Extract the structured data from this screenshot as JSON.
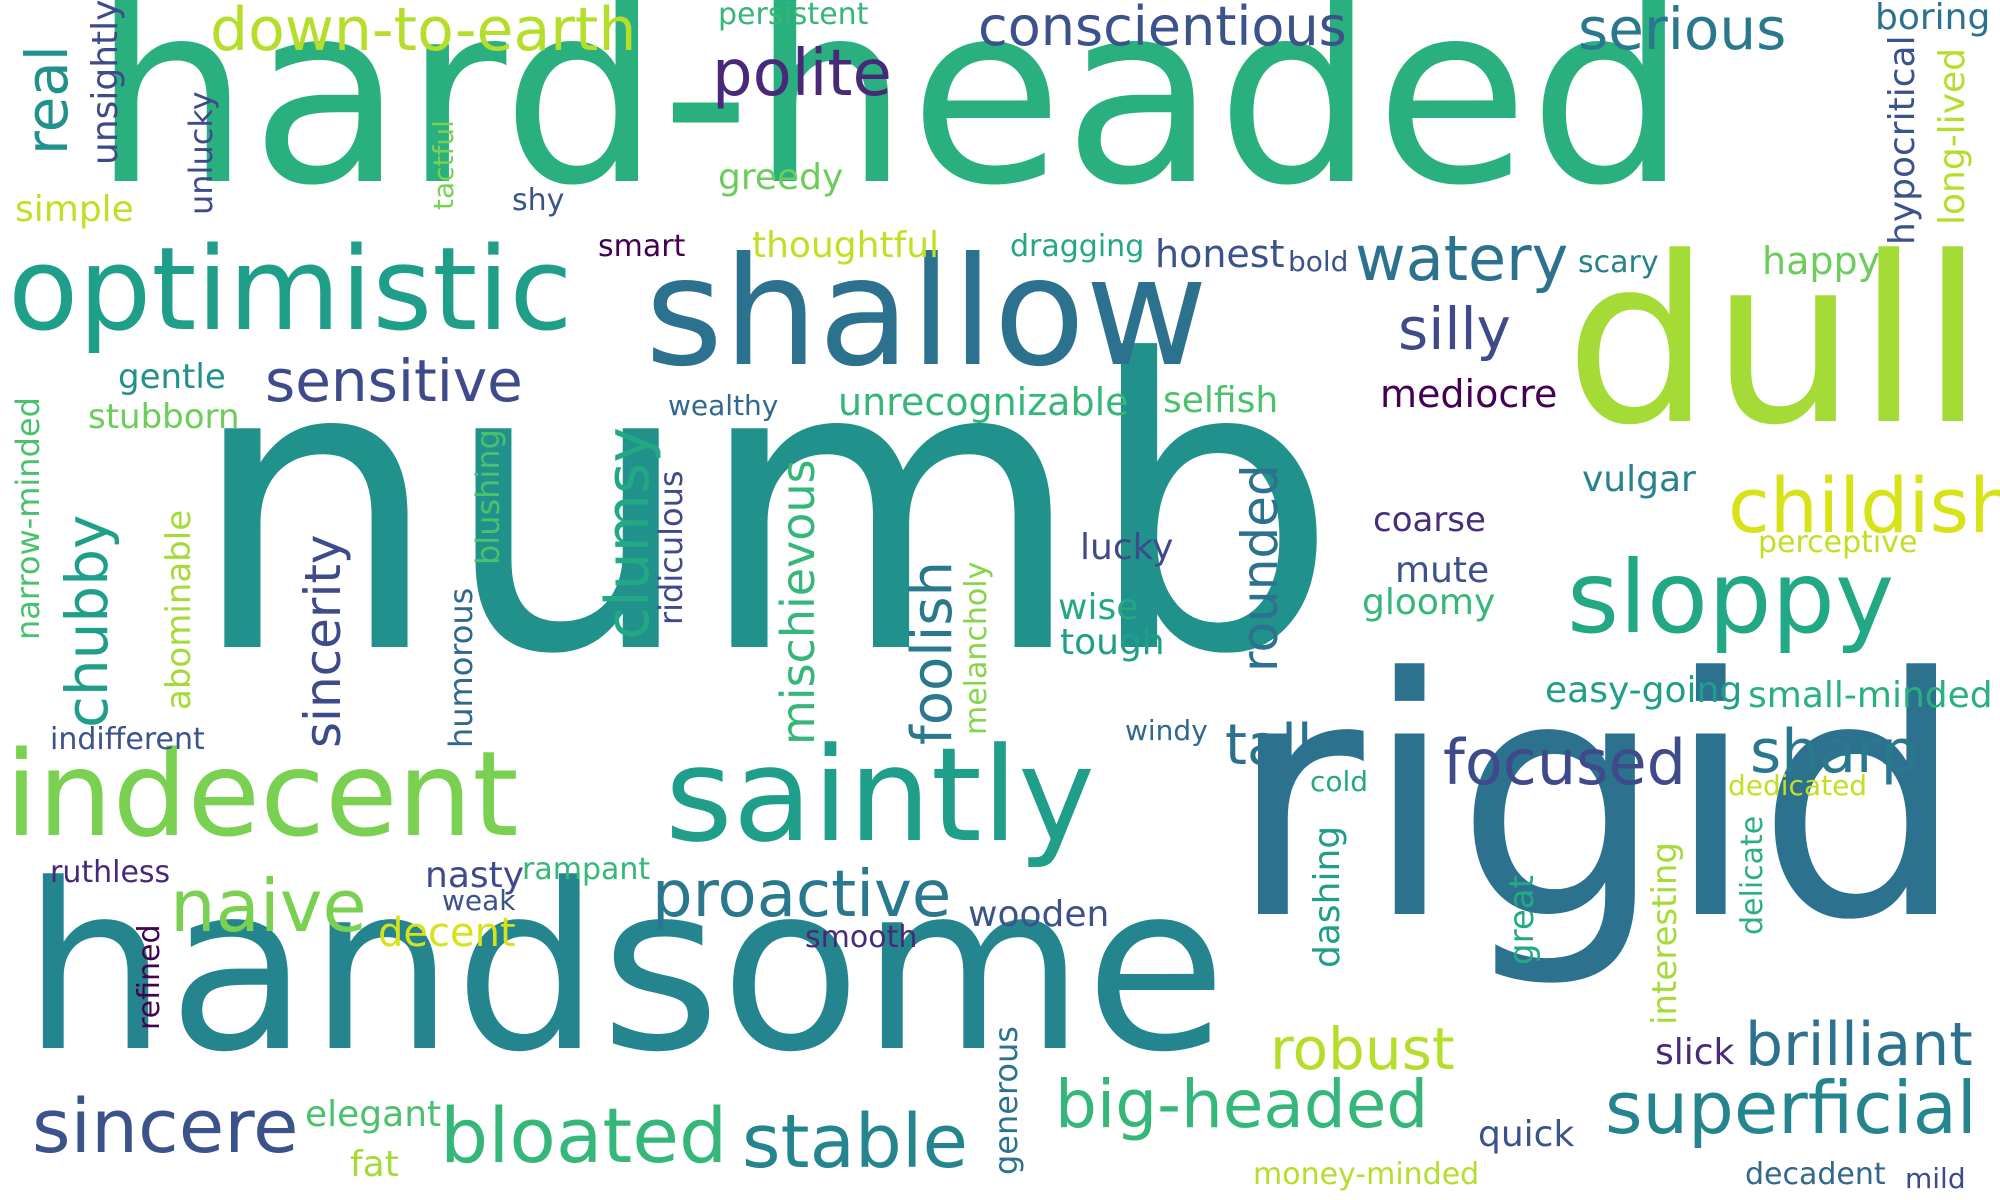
{
  "words": [
    {
      "text": "hard-headed",
      "color": "#2ab07f"
    },
    {
      "text": "numb",
      "color": "#21918c"
    },
    {
      "text": "rigid",
      "color": "#2c728e"
    },
    {
      "text": "handsome",
      "color": "#25858e"
    },
    {
      "text": "dull",
      "color": "#a5db36"
    },
    {
      "text": "shallow",
      "color": "#2c728e"
    },
    {
      "text": "optimistic",
      "color": "#1f9e89"
    },
    {
      "text": "indecent",
      "color": "#7ad151"
    },
    {
      "text": "saintly",
      "color": "#1f9e89"
    },
    {
      "text": "sloppy",
      "color": "#22a884"
    },
    {
      "text": "childish",
      "color": "#d8e219"
    },
    {
      "text": "focused",
      "color": "#3e4a89"
    },
    {
      "text": "sharp",
      "color": "#2a788e"
    },
    {
      "text": "conscientious",
      "color": "#3b528b"
    },
    {
      "text": "down-to-earth",
      "color": "#b5de2b"
    },
    {
      "text": "serious",
      "color": "#2a788e"
    },
    {
      "text": "polite",
      "color": "#482878"
    },
    {
      "text": "sensitive",
      "color": "#3e4a89"
    },
    {
      "text": "naive",
      "color": "#7ad151"
    },
    {
      "text": "proactive",
      "color": "#2a788e"
    },
    {
      "text": "big-headed",
      "color": "#35b779"
    },
    {
      "text": "superficial",
      "color": "#25858e"
    },
    {
      "text": "bloated",
      "color": "#35b779"
    },
    {
      "text": "stable",
      "color": "#25858e"
    },
    {
      "text": "sincere",
      "color": "#3b528b"
    },
    {
      "text": "robust",
      "color": "#b5de2b"
    },
    {
      "text": "brilliant",
      "color": "#2c728e"
    },
    {
      "text": "watery",
      "color": "#2c728e"
    },
    {
      "text": "silly",
      "color": "#3e4a89"
    },
    {
      "text": "tall",
      "color": "#2c728e"
    },
    {
      "text": "thoughtful",
      "color": "#c2df23"
    },
    {
      "text": "greedy",
      "color": "#6ccd5a"
    },
    {
      "text": "persistent",
      "color": "#35b779"
    },
    {
      "text": "boring",
      "color": "#2c728e"
    },
    {
      "text": "honest",
      "color": "#3b528b"
    },
    {
      "text": "happy",
      "color": "#6ccd5a"
    },
    {
      "text": "unrecognizable",
      "color": "#35b779"
    },
    {
      "text": "selfish",
      "color": "#4ac16d"
    },
    {
      "text": "mediocre",
      "color": "#440154"
    },
    {
      "text": "vulgar",
      "color": "#26828e"
    },
    {
      "text": "perceptive",
      "color": "#c2df23"
    },
    {
      "text": "easy-going",
      "color": "#1f9e89"
    },
    {
      "text": "small-minded",
      "color": "#2ab07f"
    },
    {
      "text": "dedicated",
      "color": "#c2df23"
    },
    {
      "text": "coarse",
      "color": "#472d7b"
    },
    {
      "text": "mute",
      "color": "#3b528b"
    },
    {
      "text": "gloomy",
      "color": "#35b779"
    },
    {
      "text": "lucky",
      "color": "#3e4a89"
    },
    {
      "text": "wise",
      "color": "#22a884"
    },
    {
      "text": "tough",
      "color": "#1f9e89"
    },
    {
      "text": "windy",
      "color": "#31688e"
    },
    {
      "text": "cold",
      "color": "#22a884"
    },
    {
      "text": "gentle",
      "color": "#21918c"
    },
    {
      "text": "stubborn",
      "color": "#6ccd5a"
    },
    {
      "text": "wealthy",
      "color": "#31688e"
    },
    {
      "text": "smart",
      "color": "#440154"
    },
    {
      "text": "dragging",
      "color": "#22a884"
    },
    {
      "text": "bold",
      "color": "#3b528b"
    },
    {
      "text": "scary",
      "color": "#26828e"
    },
    {
      "text": "shy",
      "color": "#3b528b"
    },
    {
      "text": "simple",
      "color": "#c2df23"
    },
    {
      "text": "indifferent",
      "color": "#3b528b"
    },
    {
      "text": "ruthless",
      "color": "#482878"
    },
    {
      "text": "nasty",
      "color": "#3e4a89"
    },
    {
      "text": "rampant",
      "color": "#35b779"
    },
    {
      "text": "weak",
      "color": "#3b528b"
    },
    {
      "text": "decent",
      "color": "#d8e219"
    },
    {
      "text": "smooth",
      "color": "#482878"
    },
    {
      "text": "wooden",
      "color": "#3b528b"
    },
    {
      "text": "elegant",
      "color": "#4ac16d"
    },
    {
      "text": "fat",
      "color": "#a5db36"
    },
    {
      "text": "quick",
      "color": "#3b528b"
    },
    {
      "text": "money-minded",
      "color": "#b5de2b"
    },
    {
      "text": "decadent",
      "color": "#31688e"
    },
    {
      "text": "mild",
      "color": "#3e4a89"
    },
    {
      "text": "slick",
      "color": "#482878"
    },
    {
      "text": "real",
      "color": "#21918c"
    },
    {
      "text": "unsightly",
      "color": "#3e4a89"
    },
    {
      "text": "unlucky",
      "color": "#3e4a89"
    },
    {
      "text": "tactful",
      "color": "#7ad151"
    },
    {
      "text": "hypocritical",
      "color": "#3b528b"
    },
    {
      "text": "long-lived",
      "color": "#b5de2b"
    },
    {
      "text": "narrow-minded",
      "color": "#4ac16d"
    },
    {
      "text": "chubby",
      "color": "#1f9e89"
    },
    {
      "text": "abominable",
      "color": "#a5db36"
    },
    {
      "text": "sincerity",
      "color": "#3e4a89"
    },
    {
      "text": "humorous",
      "color": "#31688e"
    },
    {
      "text": "blushing",
      "color": "#4ac16d"
    },
    {
      "text": "clumsy",
      "color": "#22a884"
    },
    {
      "text": "ridiculous",
      "color": "#3e4a89"
    },
    {
      "text": "mischievous",
      "color": "#35b779"
    },
    {
      "text": "foolish",
      "color": "#2a788e"
    },
    {
      "text": "melancholy",
      "color": "#86d549"
    },
    {
      "text": "rounded",
      "color": "#2c728e"
    },
    {
      "text": "dashing",
      "color": "#1f9e89"
    },
    {
      "text": "great",
      "color": "#22a884"
    },
    {
      "text": "interesting",
      "color": "#a5db36"
    },
    {
      "text": "delicate",
      "color": "#2ab07f"
    },
    {
      "text": "generous",
      "color": "#2c728e"
    },
    {
      "text": "refined",
      "color": "#440154"
    }
  ]
}
